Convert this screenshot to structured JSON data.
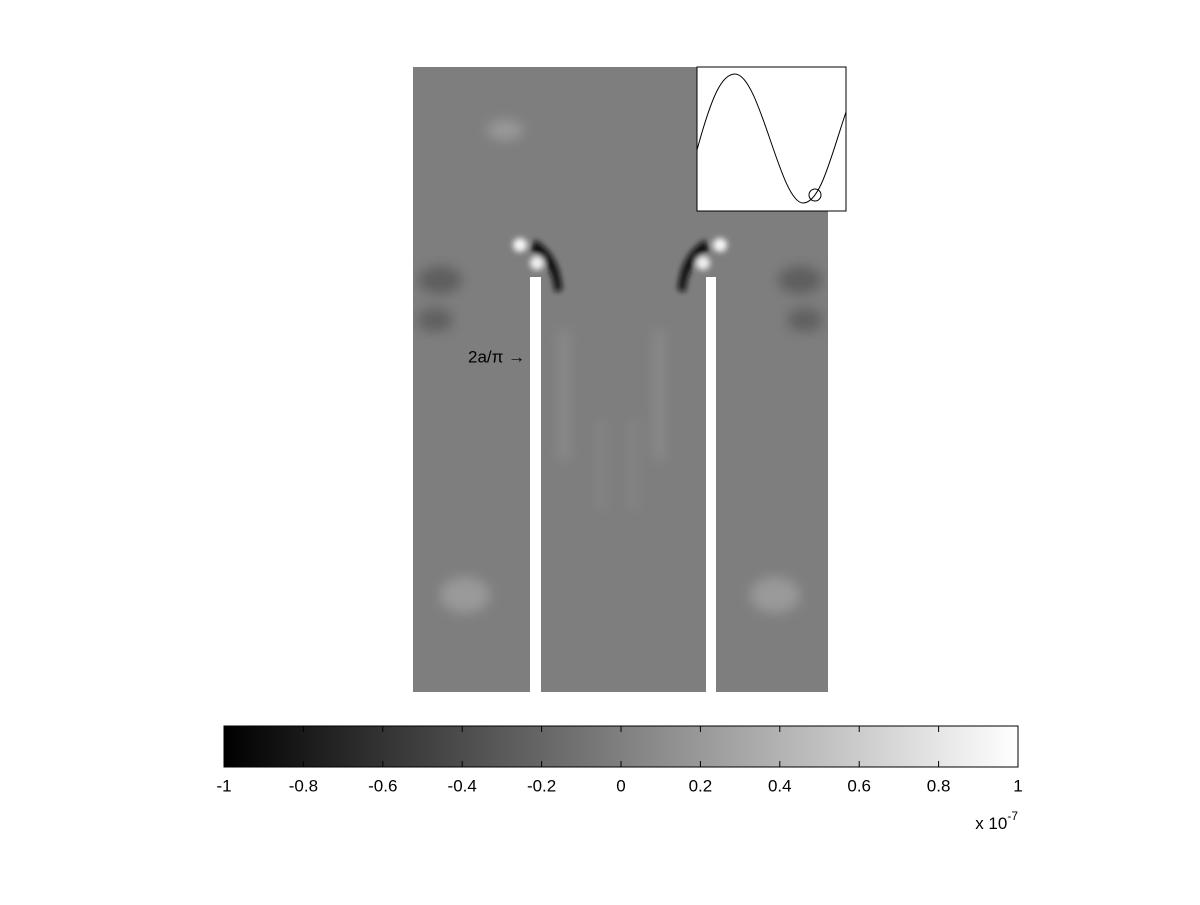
{
  "chart_data": {
    "type": "heatmap",
    "colormap": "gray",
    "annotation": "2a/π →",
    "clim": [
      -1,
      1
    ],
    "cticks": [
      -1,
      -0.8,
      -0.6,
      -0.4,
      -0.2,
      0,
      0.2,
      0.4,
      0.6,
      0.8,
      1
    ],
    "colorbar_multiplier": {
      "base": "x 10",
      "exponent": "-7"
    }
  }
}
